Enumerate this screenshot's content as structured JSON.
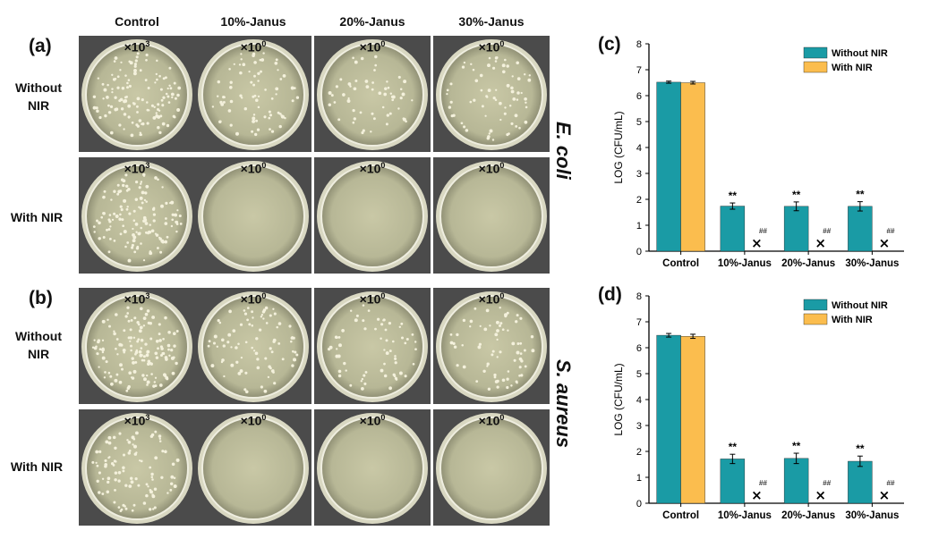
{
  "figure": {
    "column_headers": [
      "Control",
      "10%-Janus",
      "20%-Janus",
      "30%-Janus"
    ],
    "panel_labels": {
      "a": "(a)",
      "b": "(b)",
      "c": "(c)",
      "d": "(d)"
    },
    "row_labels": {
      "without_line1": "Without",
      "without_line2": "NIR",
      "with": "With NIR"
    },
    "species": {
      "a": "E. coli",
      "b": "S. aureus"
    },
    "dilution_prefix": "×10",
    "plates": [
      {
        "panel": "a",
        "row": "without",
        "exponents": [
          "3",
          "0",
          "0",
          "0"
        ],
        "colony_levels": [
          0.9,
          0.55,
          0.4,
          0.5
        ]
      },
      {
        "panel": "a",
        "row": "with",
        "exponents": [
          "3",
          "0",
          "0",
          "0"
        ],
        "colony_levels": [
          0.95,
          0,
          0,
          0
        ]
      },
      {
        "panel": "b",
        "row": "without",
        "exponents": [
          "3",
          "0",
          "0",
          "0"
        ],
        "colony_levels": [
          1.0,
          0.6,
          0.45,
          0.5
        ]
      },
      {
        "panel": "b",
        "row": "with",
        "exponents": [
          "3",
          "0",
          "0",
          "0"
        ],
        "colony_levels": [
          0.7,
          0,
          0,
          0
        ]
      }
    ],
    "colors": {
      "without_nir": "#1a9ba5",
      "with_nir": "#fbbd4e"
    }
  },
  "chart_data": [
    {
      "panel": "c",
      "type": "bar",
      "categories": [
        "Control",
        "10%-Janus",
        "20%-Janus",
        "30%-Janus"
      ],
      "series": [
        {
          "name": "Without NIR",
          "values": [
            6.52,
            1.74,
            1.73,
            1.73
          ],
          "errors": [
            0.04,
            0.12,
            0.17,
            0.18
          ]
        },
        {
          "name": "With NIR",
          "values": [
            6.5,
            0,
            0,
            0
          ],
          "errors": [
            0.05,
            0,
            0,
            0
          ]
        }
      ],
      "ylabel": "LOG (CFU/mL)",
      "ylim": [
        0,
        8
      ],
      "yticks": [
        "0",
        "1",
        "2",
        "3",
        "4",
        "5",
        "6",
        "7",
        "8"
      ],
      "legend": "top-right",
      "significance_labels": [
        "",
        "**",
        "**",
        "**"
      ],
      "with_nir_marks": [
        "",
        "##",
        "##",
        "##"
      ],
      "cross_mark": "×"
    },
    {
      "panel": "d",
      "type": "bar",
      "categories": [
        "Control",
        "10%-Janus",
        "20%-Janus",
        "30%-Janus"
      ],
      "series": [
        {
          "name": "Without NIR",
          "values": [
            6.48,
            1.71,
            1.73,
            1.62
          ],
          "errors": [
            0.07,
            0.18,
            0.2,
            0.2
          ]
        },
        {
          "name": "With NIR",
          "values": [
            6.44,
            0,
            0,
            0
          ],
          "errors": [
            0.08,
            0,
            0,
            0
          ]
        }
      ],
      "ylabel": "LOG (CFU/mL)",
      "ylim": [
        0,
        8
      ],
      "yticks": [
        "0",
        "1",
        "2",
        "3",
        "4",
        "5",
        "6",
        "7",
        "8"
      ],
      "legend": "top-right",
      "significance_labels": [
        "",
        "**",
        "**",
        "**"
      ],
      "with_nir_marks": [
        "",
        "##",
        "##",
        "##"
      ],
      "cross_mark": "×"
    }
  ]
}
